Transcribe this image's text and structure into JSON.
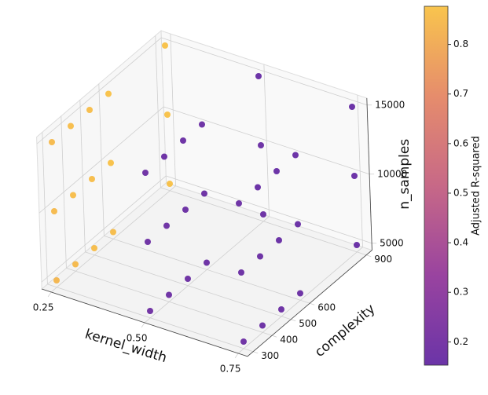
{
  "chart_data": {
    "type": "scatter3d",
    "xlabel": "kernel_width",
    "ylabel": "complexity",
    "zlabel": "n_samples",
    "colorbar_label": "Adjusted R-squared",
    "xlim": [
      0.225,
      0.775
    ],
    "xticks": [
      0.25,
      {
        "value": 0.5,
        "label": "0.50"
      },
      0.75
    ],
    "ylim": [
      270,
      930
    ],
    "yticks": [
      300,
      400,
      500,
      600,
      900
    ],
    "zlim": [
      4500,
      15500
    ],
    "zticks": [
      5000,
      10000,
      15000
    ],
    "clim": [
      0.153,
      0.877
    ],
    "cticks": [
      0.2,
      0.3,
      0.4,
      0.5,
      0.6,
      0.7,
      0.8
    ],
    "colormap": [
      "#5b1e9e",
      "#8e2f95",
      "#c1587a",
      "#e3805c",
      "#f8be3a"
    ],
    "grid": true,
    "x": [
      0.25,
      0.25,
      0.25,
      0.25,
      0.25,
      0.5,
      0.5,
      0.5,
      0.5,
      0.5,
      0.75,
      0.75,
      0.75,
      0.75,
      0.75,
      0.25,
      0.25,
      0.25,
      0.25,
      0.25,
      0.5,
      0.5,
      0.5,
      0.5,
      0.5,
      0.75,
      0.75,
      0.75,
      0.75,
      0.75,
      0.25,
      0.25,
      0.25,
      0.25,
      0.25,
      0.5,
      0.5,
      0.5,
      0.5,
      0.5,
      0.75,
      0.75,
      0.75,
      0.75,
      0.75
    ],
    "y": [
      300,
      400,
      500,
      600,
      900,
      300,
      400,
      500,
      600,
      900,
      300,
      400,
      500,
      600,
      900,
      300,
      400,
      500,
      600,
      900,
      300,
      400,
      500,
      600,
      900,
      300,
      400,
      500,
      600,
      900,
      300,
      400,
      500,
      600,
      900,
      300,
      400,
      500,
      600,
      900,
      300,
      400,
      500,
      600,
      900
    ],
    "z": [
      5000,
      5000,
      5000,
      5000,
      5000,
      5000,
      5000,
      5000,
      5000,
      5000,
      5000,
      5000,
      5000,
      5000,
      5000,
      10000,
      10000,
      10000,
      10000,
      10000,
      10000,
      10000,
      10000,
      10000,
      10000,
      10000,
      10000,
      10000,
      10000,
      10000,
      15000,
      15000,
      15000,
      15000,
      15000,
      15000,
      15000,
      15000,
      15000,
      15000,
      15000,
      15000,
      15000,
      15000,
      15000
    ],
    "values": [
      0.84,
      0.85,
      0.86,
      0.86,
      0.87,
      0.19,
      0.18,
      0.18,
      0.17,
      0.17,
      0.18,
      0.17,
      0.17,
      0.17,
      0.16,
      0.85,
      0.86,
      0.86,
      0.87,
      0.87,
      0.18,
      0.18,
      0.17,
      0.17,
      0.17,
      0.17,
      0.17,
      0.16,
      0.16,
      0.16,
      0.85,
      0.86,
      0.86,
      0.87,
      0.87,
      0.18,
      0.17,
      0.17,
      0.17,
      0.16,
      0.17,
      0.16,
      0.16,
      0.16,
      0.16
    ]
  }
}
